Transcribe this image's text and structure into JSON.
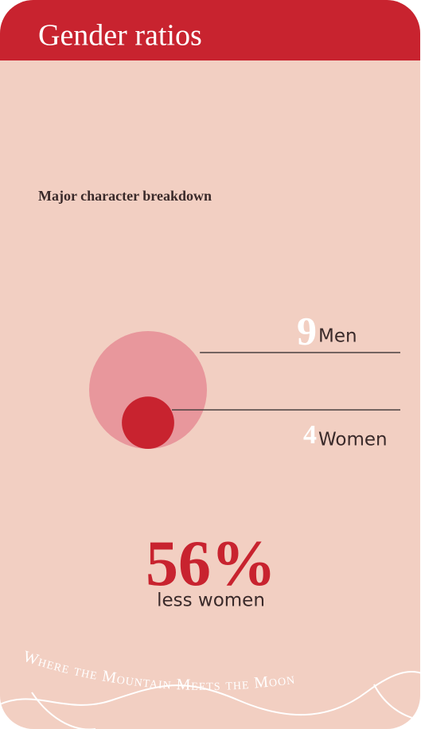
{
  "chart_data": {
    "type": "bubble",
    "title": "Gender ratios",
    "subtitle": "Major character breakdown",
    "categories": [
      "Men",
      "Women"
    ],
    "values": [
      9,
      4
    ],
    "colors": [
      "#e8979c",
      "#c8232f"
    ],
    "annotation": {
      "value": "56%",
      "label": "less women"
    }
  },
  "footer": "Where the Mountain Meets the Moon"
}
